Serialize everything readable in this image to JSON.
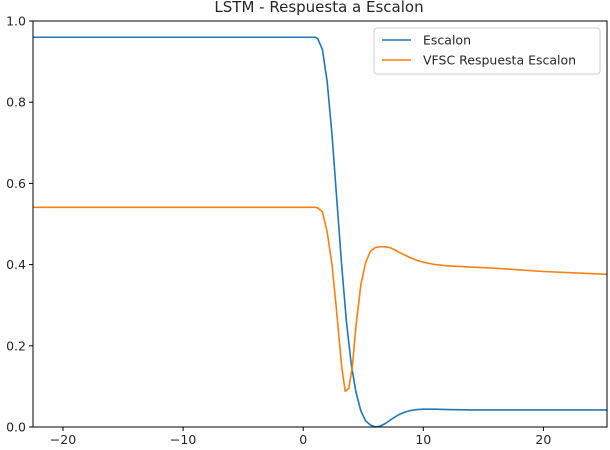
{
  "chart_data": {
    "type": "line",
    "title": "LSTM - Respuesta a Escalon",
    "xlabel": "",
    "ylabel": "",
    "xlim": [
      -22.5,
      25.3
    ],
    "ylim": [
      0.0,
      1.0
    ],
    "xticks": [
      -20,
      -10,
      0,
      10,
      20
    ],
    "xtick_labels": [
      "−20",
      "−10",
      "0",
      "10",
      "20"
    ],
    "yticks": [
      0.0,
      0.2,
      0.4,
      0.6,
      0.8,
      1.0
    ],
    "ytick_labels": [
      "0.0",
      "0.2",
      "0.4",
      "0.6",
      "0.8",
      "1.0"
    ],
    "grid": false,
    "legend_position": "top-right",
    "series": [
      {
        "name": "Escalon",
        "color": "#1f77b4",
        "x": [
          -22.5,
          -10,
          0,
          1.0,
          1.2,
          1.6,
          2.0,
          2.4,
          2.8,
          3.2,
          3.6,
          4.0,
          4.4,
          4.8,
          5.2,
          5.6,
          6.0,
          6.4,
          6.8,
          7.2,
          7.6,
          8.0,
          8.5,
          9.0,
          9.5,
          10.0,
          10.5,
          11.0,
          12.0,
          14.0,
          16.0,
          20.0,
          25.3
        ],
        "y": [
          0.96,
          0.96,
          0.96,
          0.96,
          0.957,
          0.93,
          0.85,
          0.72,
          0.56,
          0.4,
          0.26,
          0.155,
          0.085,
          0.04,
          0.015,
          0.005,
          0.0,
          0.002,
          0.008,
          0.016,
          0.024,
          0.031,
          0.037,
          0.041,
          0.043,
          0.044,
          0.044,
          0.044,
          0.043,
          0.042,
          0.042,
          0.042,
          0.042
        ]
      },
      {
        "name": "VFSC Respuesta Escalon",
        "color": "#ff7f0e",
        "x": [
          -22.5,
          -10,
          0,
          1.0,
          1.2,
          1.6,
          2.0,
          2.4,
          2.8,
          3.2,
          3.5,
          3.8,
          4.1,
          4.4,
          4.8,
          5.2,
          5.6,
          6.0,
          6.4,
          6.8,
          7.2,
          7.6,
          8.0,
          8.5,
          9.0,
          9.5,
          10.0,
          11.0,
          12.0,
          14.0,
          16.0,
          20.0,
          25.3
        ],
        "y": [
          0.541,
          0.541,
          0.541,
          0.541,
          0.54,
          0.53,
          0.48,
          0.4,
          0.28,
          0.15,
          0.088,
          0.095,
          0.15,
          0.25,
          0.35,
          0.405,
          0.433,
          0.442,
          0.444,
          0.444,
          0.442,
          0.437,
          0.43,
          0.423,
          0.416,
          0.41,
          0.406,
          0.4,
          0.397,
          0.394,
          0.391,
          0.383,
          0.376
        ]
      }
    ]
  }
}
